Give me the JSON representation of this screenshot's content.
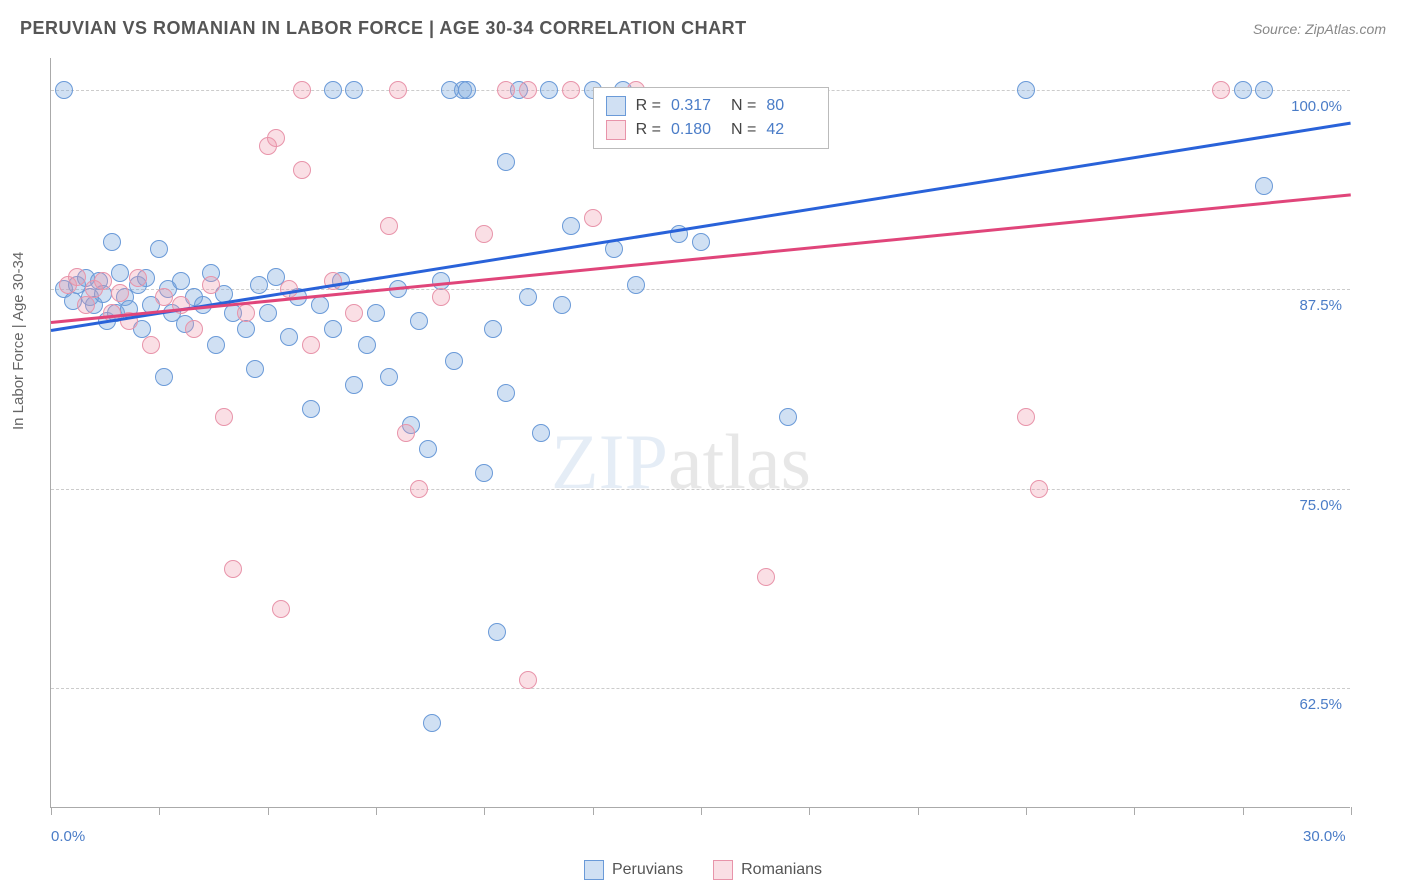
{
  "header": {
    "title": "PERUVIAN VS ROMANIAN IN LABOR FORCE | AGE 30-34 CORRELATION CHART",
    "source_label": "Source: ",
    "source_value": "ZipAtlas.com"
  },
  "chart": {
    "type": "scatter",
    "y_axis_label": "In Labor Force | Age 30-34",
    "xlim": [
      0,
      30
    ],
    "ylim": [
      55,
      102
    ],
    "x_ticks": [
      0,
      2.5,
      5,
      7.5,
      10,
      12.5,
      15,
      17.5,
      20,
      22.5,
      25,
      27.5,
      30
    ],
    "x_tick_labels": {
      "0": "0.0%",
      "30": "30.0%"
    },
    "y_gridlines": [
      62.5,
      75.0,
      87.5,
      100.0
    ],
    "y_tick_labels": [
      "62.5%",
      "75.0%",
      "87.5%",
      "100.0%"
    ],
    "background_color": "#ffffff",
    "grid_color": "#cccccc",
    "axis_color": "#aaaaaa",
    "label_color": "#4a7cc7",
    "marker_size": 18,
    "series": [
      {
        "name": "Peruvians",
        "color_fill": "rgba(120,165,220,0.35)",
        "color_stroke": "#6a9ad8",
        "trend_color": "#2962d9",
        "trend": {
          "x1": 0,
          "y1": 85.0,
          "x2": 30,
          "y2": 98.0
        },
        "stats": {
          "R": "0.317",
          "N": "80"
        },
        "points": [
          [
            0.3,
            87.5
          ],
          [
            0.3,
            100.0
          ],
          [
            0.5,
            86.8
          ],
          [
            0.6,
            87.8
          ],
          [
            0.8,
            88.2
          ],
          [
            0.9,
            87.0
          ],
          [
            1.0,
            86.5
          ],
          [
            1.1,
            88.0
          ],
          [
            1.2,
            87.2
          ],
          [
            1.3,
            85.5
          ],
          [
            1.4,
            90.5
          ],
          [
            1.5,
            86.0
          ],
          [
            1.6,
            88.5
          ],
          [
            1.7,
            87.0
          ],
          [
            1.8,
            86.3
          ],
          [
            2.0,
            87.8
          ],
          [
            2.1,
            85.0
          ],
          [
            2.2,
            88.2
          ],
          [
            2.3,
            86.5
          ],
          [
            2.5,
            90.0
          ],
          [
            2.6,
            82.0
          ],
          [
            2.7,
            87.5
          ],
          [
            2.8,
            86.0
          ],
          [
            3.0,
            88.0
          ],
          [
            3.1,
            85.3
          ],
          [
            3.3,
            87.0
          ],
          [
            3.5,
            86.5
          ],
          [
            3.7,
            88.5
          ],
          [
            3.8,
            84.0
          ],
          [
            4.0,
            87.2
          ],
          [
            4.2,
            86.0
          ],
          [
            4.5,
            85.0
          ],
          [
            4.7,
            82.5
          ],
          [
            4.8,
            87.8
          ],
          [
            5.0,
            86.0
          ],
          [
            5.2,
            88.3
          ],
          [
            5.5,
            84.5
          ],
          [
            5.7,
            87.0
          ],
          [
            6.0,
            80.0
          ],
          [
            6.2,
            86.5
          ],
          [
            6.5,
            85.0
          ],
          [
            6.7,
            88.0
          ],
          [
            7.0,
            81.5
          ],
          [
            6.5,
            100.0
          ],
          [
            7.0,
            100.0
          ],
          [
            7.3,
            84.0
          ],
          [
            7.5,
            86.0
          ],
          [
            7.8,
            82.0
          ],
          [
            8.0,
            87.5
          ],
          [
            8.3,
            79.0
          ],
          [
            8.5,
            85.5
          ],
          [
            8.7,
            77.5
          ],
          [
            8.8,
            60.3
          ],
          [
            9.0,
            88.0
          ],
          [
            9.2,
            100.0
          ],
          [
            9.3,
            83.0
          ],
          [
            9.5,
            100.0
          ],
          [
            9.6,
            100.0
          ],
          [
            10.0,
            76.0
          ],
          [
            10.2,
            85.0
          ],
          [
            10.5,
            95.5
          ],
          [
            10.5,
            81.0
          ],
          [
            10.8,
            100.0
          ],
          [
            11.0,
            87.0
          ],
          [
            11.3,
            78.5
          ],
          [
            11.5,
            100.0
          ],
          [
            11.8,
            86.5
          ],
          [
            12.0,
            91.5
          ],
          [
            10.3,
            66.0
          ],
          [
            12.5,
            100.0
          ],
          [
            13.0,
            90.0
          ],
          [
            13.2,
            100.0
          ],
          [
            13.5,
            87.8
          ],
          [
            14.5,
            91.0
          ],
          [
            15.0,
            90.5
          ],
          [
            17.0,
            79.5
          ],
          [
            22.5,
            100.0
          ],
          [
            28.0,
            100.0
          ],
          [
            28.0,
            94.0
          ],
          [
            27.5,
            100.0
          ]
        ]
      },
      {
        "name": "Romanians",
        "color_fill": "rgba(240,150,170,0.30)",
        "color_stroke": "#e894aa",
        "trend_color": "#e0457a",
        "trend": {
          "x1": 0,
          "y1": 85.5,
          "x2": 30,
          "y2": 93.5
        },
        "stats": {
          "R": "0.180",
          "N": "42"
        },
        "points": [
          [
            0.4,
            87.8
          ],
          [
            0.6,
            88.3
          ],
          [
            0.8,
            86.5
          ],
          [
            1.0,
            87.5
          ],
          [
            1.2,
            88.0
          ],
          [
            1.4,
            86.0
          ],
          [
            1.6,
            87.3
          ],
          [
            1.8,
            85.5
          ],
          [
            2.0,
            88.2
          ],
          [
            2.3,
            84.0
          ],
          [
            2.6,
            87.0
          ],
          [
            3.0,
            86.5
          ],
          [
            3.3,
            85.0
          ],
          [
            3.7,
            87.8
          ],
          [
            4.0,
            79.5
          ],
          [
            4.2,
            70.0
          ],
          [
            4.5,
            86.0
          ],
          [
            5.0,
            96.5
          ],
          [
            5.2,
            97.0
          ],
          [
            5.3,
            67.5
          ],
          [
            5.5,
            87.5
          ],
          [
            5.8,
            95.0
          ],
          [
            5.8,
            100.0
          ],
          [
            6.0,
            84.0
          ],
          [
            6.5,
            88.0
          ],
          [
            7.0,
            86.0
          ],
          [
            7.8,
            91.5
          ],
          [
            8.0,
            100.0
          ],
          [
            8.2,
            78.5
          ],
          [
            8.5,
            75.0
          ],
          [
            9.0,
            87.0
          ],
          [
            10.0,
            91.0
          ],
          [
            10.5,
            100.0
          ],
          [
            11.0,
            100.0
          ],
          [
            11.0,
            63.0
          ],
          [
            12.0,
            100.0
          ],
          [
            12.5,
            92.0
          ],
          [
            13.5,
            100.0
          ],
          [
            16.5,
            69.5
          ],
          [
            22.5,
            79.5
          ],
          [
            22.8,
            75.0
          ],
          [
            27.0,
            100.0
          ]
        ]
      }
    ],
    "stats_box": {
      "position_x": 12.5,
      "position_y": 100.0,
      "r_label": "R =",
      "n_label": "N ="
    },
    "bottom_legend": {
      "items": [
        "Peruvians",
        "Romanians"
      ]
    },
    "watermark": {
      "text_zip": "ZIP",
      "text_atlas": "atlas",
      "position_x": 15,
      "position_y": 77
    }
  }
}
